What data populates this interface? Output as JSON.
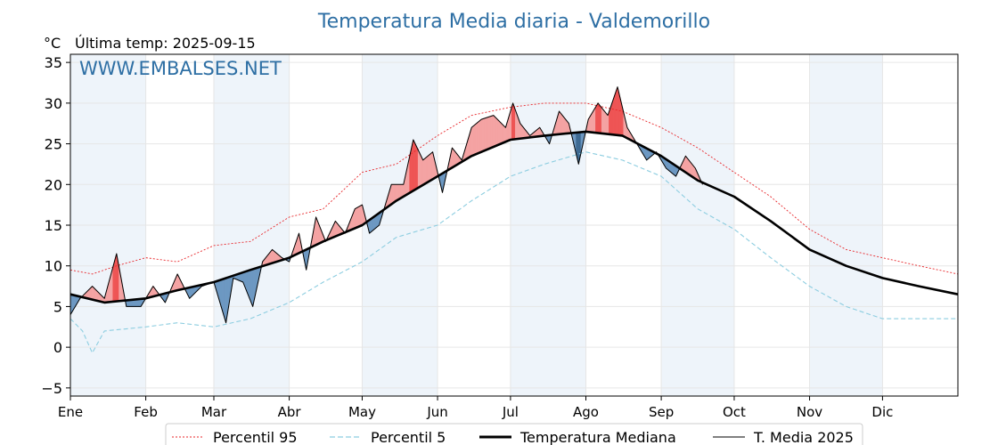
{
  "chart_data": {
    "type": "line",
    "title": "Temperatura Media diaria - Valdemorillo",
    "unit_label": "°C",
    "subtitle": "Última temp: 2025-09-15",
    "watermark": "WWW.EMBALSES.NET",
    "ylim": [
      -6,
      36
    ],
    "y_ticks": [
      -5,
      0,
      5,
      10,
      15,
      20,
      25,
      30,
      35
    ],
    "x_ticks": [
      "Ene",
      "Feb",
      "Mar",
      "Abr",
      "May",
      "Jun",
      "Jul",
      "Ago",
      "Sep",
      "Oct",
      "Nov",
      "Dic"
    ],
    "x_tick_days": [
      1,
      32,
      60,
      91,
      121,
      152,
      182,
      213,
      244,
      274,
      305,
      335
    ],
    "x_domain_days": [
      1,
      366
    ],
    "grid": true,
    "shaded_months": [
      "Ene",
      "Mar",
      "May",
      "Jul",
      "Sep",
      "Nov"
    ],
    "legend_position": "bottom-center",
    "colors": {
      "p95": "#e8262a",
      "p5": "#8ccde0",
      "median": "#000000",
      "current": "#000000",
      "above": "#f4a3a3",
      "above_strong": "#ee5555",
      "below": "#6d98c2",
      "below_dark": "#3e6a93",
      "band": "#eef4fa",
      "title": "#2e6fa4"
    },
    "series": [
      {
        "name": "Percentil 95",
        "style": "dotted",
        "points": [
          [
            1,
            9.5
          ],
          [
            10,
            9
          ],
          [
            20,
            10
          ],
          [
            32,
            11
          ],
          [
            45,
            10.5
          ],
          [
            60,
            12.5
          ],
          [
            75,
            13
          ],
          [
            91,
            16
          ],
          [
            105,
            17
          ],
          [
            121,
            21.5
          ],
          [
            135,
            22.5
          ],
          [
            152,
            26
          ],
          [
            166,
            28.5
          ],
          [
            182,
            29.5
          ],
          [
            196,
            30
          ],
          [
            213,
            30
          ],
          [
            228,
            29
          ],
          [
            244,
            27
          ],
          [
            259,
            24.5
          ],
          [
            274,
            21.5
          ],
          [
            289,
            18.5
          ],
          [
            305,
            14.5
          ],
          [
            320,
            12
          ],
          [
            335,
            11
          ],
          [
            350,
            10
          ],
          [
            366,
            9
          ]
        ]
      },
      {
        "name": "Percentil 5",
        "style": "dashed",
        "points": [
          [
            1,
            3.5
          ],
          [
            6,
            2
          ],
          [
            10,
            -0.7
          ],
          [
            15,
            2
          ],
          [
            32,
            2.5
          ],
          [
            45,
            3
          ],
          [
            60,
            2.5
          ],
          [
            75,
            3.5
          ],
          [
            91,
            5.5
          ],
          [
            105,
            8
          ],
          [
            121,
            10.5
          ],
          [
            135,
            13.5
          ],
          [
            152,
            15
          ],
          [
            166,
            18
          ],
          [
            182,
            21
          ],
          [
            196,
            22.5
          ],
          [
            213,
            24
          ],
          [
            228,
            23
          ],
          [
            244,
            21
          ],
          [
            259,
            17
          ],
          [
            274,
            14.5
          ],
          [
            289,
            11
          ],
          [
            305,
            7.5
          ],
          [
            320,
            5
          ],
          [
            335,
            3.5
          ],
          [
            350,
            3.5
          ],
          [
            366,
            3.5
          ]
        ]
      },
      {
        "name": "Temperatura Mediana",
        "style": "bold",
        "points": [
          [
            1,
            6.5
          ],
          [
            15,
            5.5
          ],
          [
            32,
            6
          ],
          [
            45,
            7
          ],
          [
            60,
            8
          ],
          [
            75,
            9.5
          ],
          [
            91,
            11
          ],
          [
            105,
            13
          ],
          [
            121,
            15
          ],
          [
            135,
            18
          ],
          [
            152,
            21
          ],
          [
            166,
            23.5
          ],
          [
            182,
            25.5
          ],
          [
            196,
            26
          ],
          [
            213,
            26.5
          ],
          [
            228,
            26
          ],
          [
            244,
            23.5
          ],
          [
            259,
            20.5
          ],
          [
            274,
            18.5
          ],
          [
            289,
            15.5
          ],
          [
            305,
            12
          ],
          [
            320,
            10
          ],
          [
            335,
            8.5
          ],
          [
            350,
            7.5
          ],
          [
            366,
            6.5
          ]
        ]
      },
      {
        "name": "T. Media 2025",
        "style": "solid",
        "points": [
          [
            1,
            4
          ],
          [
            5,
            6
          ],
          [
            10,
            7.5
          ],
          [
            15,
            6
          ],
          [
            20,
            11.5
          ],
          [
            24,
            5
          ],
          [
            30,
            5
          ],
          [
            35,
            7.5
          ],
          [
            40,
            5.5
          ],
          [
            45,
            9
          ],
          [
            50,
            6
          ],
          [
            55,
            7.5
          ],
          [
            60,
            8
          ],
          [
            65,
            3
          ],
          [
            68,
            8.5
          ],
          [
            72,
            8
          ],
          [
            76,
            5
          ],
          [
            80,
            10.5
          ],
          [
            84,
            12
          ],
          [
            88,
            11
          ],
          [
            91,
            10.5
          ],
          [
            95,
            14
          ],
          [
            98,
            9.5
          ],
          [
            102,
            16
          ],
          [
            106,
            13
          ],
          [
            110,
            15.5
          ],
          [
            114,
            14
          ],
          [
            118,
            17
          ],
          [
            121,
            17.5
          ],
          [
            124,
            14
          ],
          [
            128,
            15
          ],
          [
            133,
            20
          ],
          [
            138,
            20
          ],
          [
            142,
            25.5
          ],
          [
            146,
            23
          ],
          [
            150,
            24
          ],
          [
            154,
            19
          ],
          [
            158,
            24.5
          ],
          [
            162,
            23
          ],
          [
            166,
            27
          ],
          [
            170,
            28
          ],
          [
            175,
            28.5
          ],
          [
            180,
            27
          ],
          [
            183,
            30
          ],
          [
            186,
            27.5
          ],
          [
            190,
            26
          ],
          [
            194,
            27
          ],
          [
            198,
            25
          ],
          [
            202,
            29
          ],
          [
            206,
            27.5
          ],
          [
            210,
            22.5
          ],
          [
            214,
            28
          ],
          [
            218,
            30
          ],
          [
            222,
            28.5
          ],
          [
            226,
            32
          ],
          [
            230,
            27
          ],
          [
            234,
            25
          ],
          [
            238,
            23
          ],
          [
            242,
            24
          ],
          [
            246,
            22
          ],
          [
            250,
            21
          ],
          [
            254,
            23.5
          ],
          [
            258,
            22
          ],
          [
            261,
            20
          ]
        ]
      }
    ],
    "legend": [
      "Percentil 95",
      "Percentil 5",
      "Temperatura Mediana",
      "T. Media 2025"
    ]
  }
}
